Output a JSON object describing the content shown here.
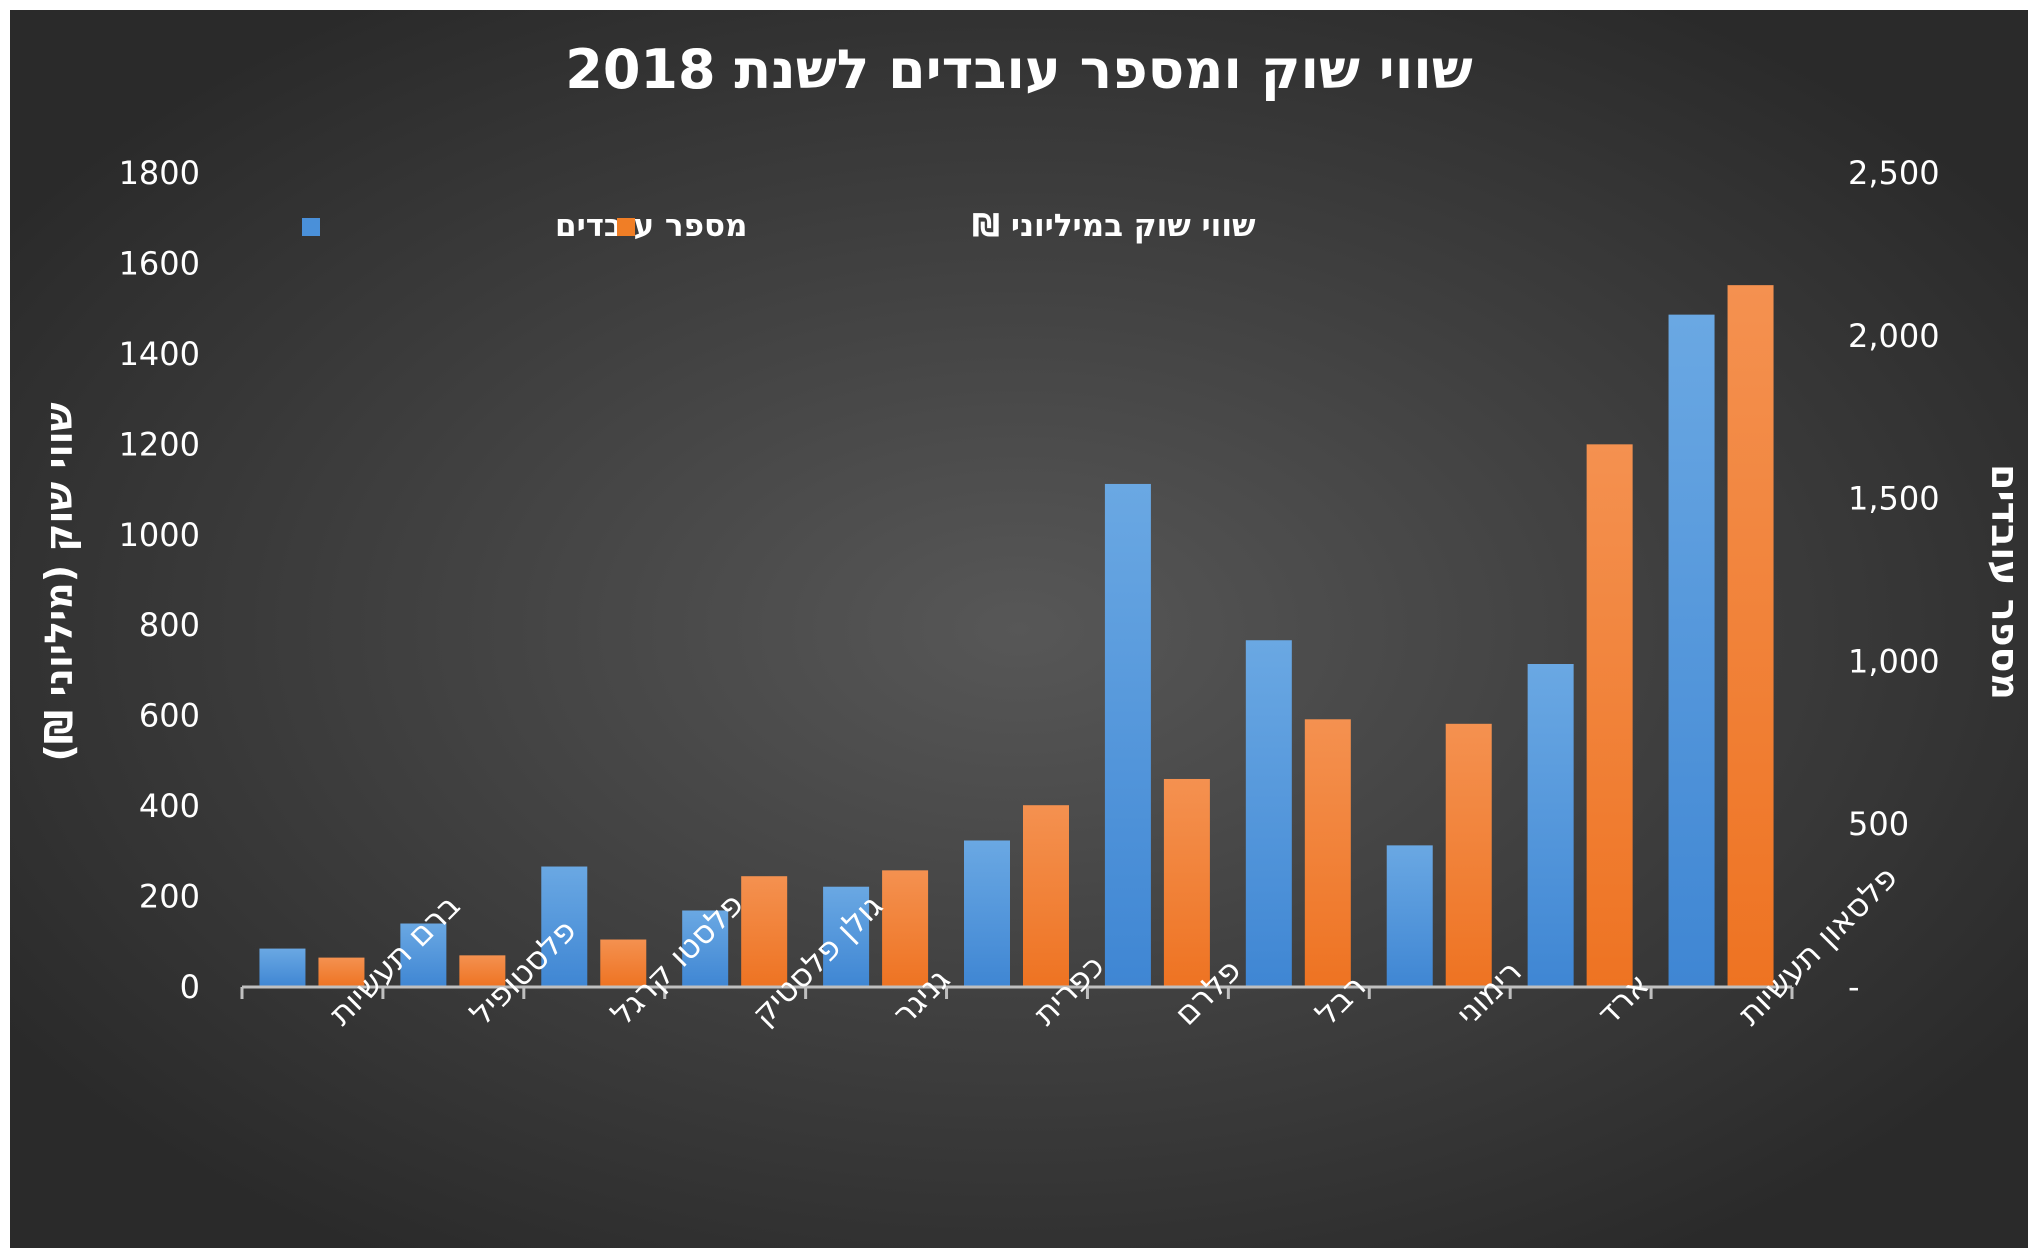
{
  "chart_data": {
    "type": "bar",
    "title": "שווי שוק ומספר עובדים לשנת 2018",
    "categories": [
      "ברם תעשיות",
      "פלסטופיל",
      "פלסטו קרגל",
      "גולן פלסטיק",
      "גניגר",
      "כפרית",
      "פלרם",
      "רבל",
      "רימוני",
      "ארד",
      "פלסאון תעשיות"
    ],
    "series": [
      {
        "name": "מספר עובדים",
        "axis": "right",
        "color": "#4A90D9",
        "values": [
          118,
          195,
          370,
          235,
          308,
          450,
          1545,
          1065,
          435,
          992,
          2065
        ]
      },
      {
        "name": "שווי שוק במיליוני ₪",
        "axis": "left",
        "color": "#F07E26",
        "values": [
          65,
          70,
          105,
          245,
          258,
          402,
          460,
          592,
          582,
          1200,
          1552
        ]
      }
    ],
    "ylabel": "שווי שוק (מיליוני ₪)",
    "y2label": "מספר עובדים",
    "ylim": [
      0,
      1800
    ],
    "y2lim": [
      0,
      2500
    ],
    "yticks": [
      "0",
      "200",
      "400",
      "600",
      "800",
      "1000",
      "1200",
      "1400",
      "1600",
      "1800"
    ],
    "y2ticks": [
      "-",
      "500",
      "1,000",
      "1,500",
      "2,000",
      "2,500"
    ],
    "legend": [
      {
        "label": "מספר עובדים",
        "color": "#4A90D9"
      },
      {
        "label": "שווי שוק במיליוני ₪",
        "color": "#F07E26"
      }
    ],
    "legend_position": "top-left",
    "grid": false
  }
}
